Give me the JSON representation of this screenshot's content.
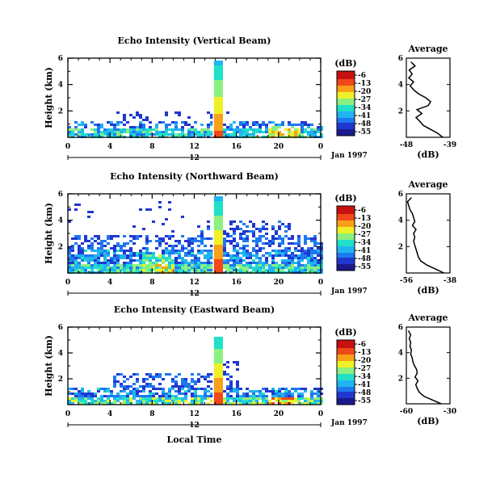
{
  "chart_data": [
    {
      "type": "heatmap",
      "title": "Echo Intensity (Vertical Beam)",
      "ylabel": "Height (km)",
      "x_ticks": [
        "0",
        "4",
        "8",
        "12",
        "16",
        "20",
        "0"
      ],
      "y_ticks": [
        "6",
        "4",
        "2"
      ],
      "ylim": [
        0,
        6
      ],
      "xlim": [
        0,
        24
      ],
      "bottom_date_label": "12",
      "date_label": "Jan 1997",
      "colorbar": {
        "unit": "(dB)",
        "ticks": [
          "-6",
          "-13",
          "-20",
          "-27",
          "-34",
          "-41",
          "-48",
          "-55"
        ]
      },
      "profile": {
        "title": "Average",
        "xlabel": "(dB)",
        "x_ticks": [
          "-48",
          "-39"
        ],
        "xlim": [
          -48,
          -39
        ],
        "y_ticks": [
          "6",
          "4",
          "2"
        ],
        "height_km": [
          0.0,
          0.3,
          0.6,
          0.9,
          1.2,
          1.5,
          1.8,
          2.1,
          2.4,
          2.7,
          3.0,
          3.3,
          3.6,
          3.9,
          4.2,
          4.5,
          4.8,
          5.1,
          5.4,
          5.7
        ],
        "values_db": [
          -40.5,
          -41.5,
          -43.0,
          -44.5,
          -45.2,
          -46.0,
          -44.8,
          -45.8,
          -43.5,
          -43.0,
          -44.0,
          -45.5,
          -46.5,
          -47.2,
          -46.5,
          -47.5,
          -46.8,
          -47.4,
          -46.2,
          -47.0
        ]
      }
    },
    {
      "type": "heatmap",
      "title": "Echo Intensity (Northward Beam)",
      "ylabel": "Height (km)",
      "x_ticks": [
        "0",
        "4",
        "8",
        "12",
        "16",
        "20",
        "0"
      ],
      "y_ticks": [
        "6",
        "4",
        "2"
      ],
      "ylim": [
        0,
        6
      ],
      "xlim": [
        0,
        24
      ],
      "bottom_date_label": "12",
      "date_label": "Jan 1997",
      "colorbar": {
        "unit": "(dB)",
        "ticks": [
          "-6",
          "-13",
          "-20",
          "-27",
          "-34",
          "-41",
          "-48",
          "-55"
        ]
      },
      "profile": {
        "title": "Average",
        "xlabel": "(dB)",
        "x_ticks": [
          "-56",
          "-38"
        ],
        "xlim": [
          -56,
          -38
        ],
        "y_ticks": [
          "6",
          "4",
          "2"
        ],
        "height_km": [
          0.0,
          0.3,
          0.6,
          0.9,
          1.2,
          1.5,
          1.8,
          2.1,
          2.4,
          2.7,
          3.0,
          3.3,
          3.6,
          3.9,
          4.2,
          4.5,
          4.8,
          5.1,
          5.4,
          5.7
        ],
        "values_db": [
          -40.5,
          -44.0,
          -47.5,
          -50.0,
          -51.0,
          -51.5,
          -52.0,
          -52.5,
          -53.0,
          -52.5,
          -53.0,
          -52.0,
          -53.5,
          -52.5,
          -53.0,
          -53.5,
          -54.5,
          -55.0,
          -55.5,
          -54.0
        ]
      }
    },
    {
      "type": "heatmap",
      "title": "Echo Intensity (Eastward Beam)",
      "ylabel": "Height (km)",
      "x_ticks": [
        "0",
        "4",
        "8",
        "12",
        "16",
        "20",
        "0"
      ],
      "y_ticks": [
        "6",
        "4",
        "2"
      ],
      "ylim": [
        0,
        6
      ],
      "xlim": [
        0,
        24
      ],
      "bottom_date_label": "12",
      "date_label": "Jan 1997",
      "xlabel": "Local Time",
      "colorbar": {
        "unit": "(dB)",
        "ticks": [
          "-6",
          "-13",
          "-20",
          "-27",
          "-34",
          "-41",
          "-48",
          "-55"
        ]
      },
      "profile": {
        "title": "Average",
        "xlabel": "(dB)",
        "x_ticks": [
          "-60",
          "-30"
        ],
        "xlim": [
          -60,
          -30
        ],
        "y_ticks": [
          "6",
          "4",
          "2"
        ],
        "height_km": [
          0.0,
          0.3,
          0.6,
          0.9,
          1.2,
          1.5,
          1.8,
          2.1,
          2.4,
          2.7,
          3.0,
          3.3,
          3.6,
          3.9,
          4.2,
          4.5,
          4.8,
          5.1,
          5.4,
          5.7
        ],
        "values_db": [
          -36.0,
          -42.0,
          -48.0,
          -51.0,
          -52.5,
          -53.5,
          -52.0,
          -54.0,
          -52.5,
          -53.0,
          -54.5,
          -55.5,
          -56.0,
          -57.0,
          -56.5,
          -57.5,
          -57.0,
          -58.0,
          -57.0,
          -58.5
        ]
      }
    }
  ],
  "colors": {
    "colormap": [
      "#1a1a8c",
      "#2038d0",
      "#1e78f0",
      "#20b4f0",
      "#20e0c8",
      "#8cf080",
      "#f0f028",
      "#f8a018",
      "#f04818",
      "#c81010"
    ]
  }
}
